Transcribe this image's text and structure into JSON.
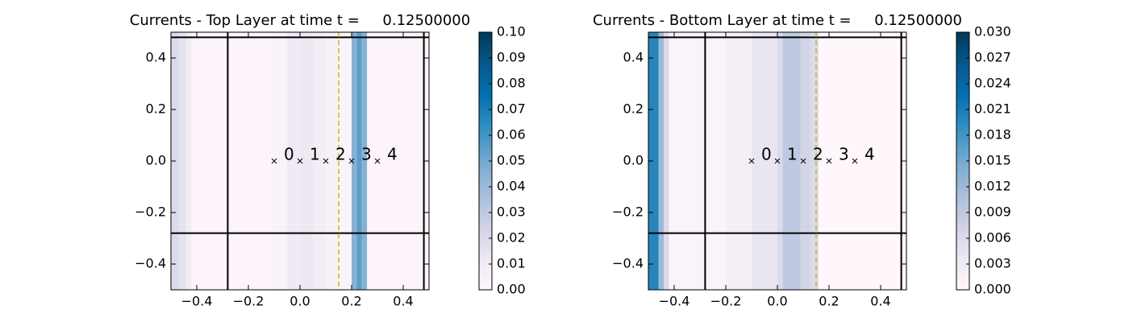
{
  "chart_data": [
    {
      "type": "stripe-heatmap",
      "title": "Currents - Top Layer at time t =     0.12500000",
      "xlim": [
        -0.5,
        0.5
      ],
      "ylim": [
        -0.5,
        0.5
      ],
      "xticks": [
        {
          "value": -0.4,
          "label": "−0.4"
        },
        {
          "value": -0.2,
          "label": "−0.2"
        },
        {
          "value": 0,
          "label": "0.0"
        },
        0.2,
        0.4
      ],
      "yticks": [
        {
          "value": -0.4,
          "label": "−0.4"
        },
        {
          "value": -0.2,
          "label": "−0.2"
        },
        {
          "value": 0,
          "label": "0.0"
        },
        0.2,
        0.4
      ],
      "bins": [
        -0.5,
        -0.47,
        -0.44,
        -0.42,
        -0.1,
        -0.05,
        0,
        0.05,
        0.1,
        0.15,
        0.2,
        0.22,
        0.24,
        0.26,
        0.5
      ],
      "values": [
        0.02,
        0.015,
        0.008,
        0.002,
        0.004,
        0.01,
        0.012,
        0.008,
        0.005,
        0.003,
        0.045,
        0.055,
        0.045,
        0.002
      ],
      "colormap": [
        "#fff7fb",
        "#ece7f2",
        "#d0d1e6",
        "#a6bddb",
        "#74a9cf",
        "#3690c0",
        "#0570b0",
        "#045a8d",
        "#023858"
      ],
      "clim": [
        0,
        0.1
      ],
      "cticks": [
        {
          "value": 0,
          "label": "0.00"
        },
        0.01,
        0.02,
        0.03,
        0.04,
        0.05,
        0.06,
        0.07,
        0.08,
        0.09,
        {
          "value": 0.1,
          "label": "0.10"
        }
      ],
      "hlines": [
        -0.28,
        0.48
      ],
      "vlines": [
        -0.28,
        0.48
      ],
      "dashed_line": {
        "x": 0.15,
        "color": "#bfbf00"
      },
      "points": {
        "x": [
          -0.1,
          0,
          0.1,
          0.2,
          0.3
        ],
        "y": [
          0,
          0,
          0,
          0,
          0
        ],
        "labels": [
          "0",
          "1",
          "2",
          "3",
          "4"
        ]
      }
    },
    {
      "type": "stripe-heatmap",
      "title": "Currents - Bottom Layer at time t =     0.12500000",
      "xlim": [
        -0.5,
        0.5
      ],
      "ylim": [
        -0.5,
        0.5
      ],
      "xticks": [
        {
          "value": -0.4,
          "label": "−0.4"
        },
        {
          "value": -0.2,
          "label": "−0.2"
        },
        {
          "value": 0,
          "label": "0.0"
        },
        0.2,
        0.4
      ],
      "yticks": [
        {
          "value": -0.4,
          "label": "−0.4"
        },
        {
          "value": -0.2,
          "label": "−0.2"
        },
        {
          "value": 0,
          "label": "0.0"
        },
        0.2,
        0.4
      ],
      "bins": [
        -0.5,
        -0.46,
        -0.44,
        -0.42,
        -0.2,
        -0.1,
        0,
        0.02,
        0.09,
        0.13,
        0.16,
        0.5
      ],
      "values": [
        0.02,
        0.012,
        0.006,
        0.001,
        0.002,
        0.004,
        0.006,
        0.009,
        0.007,
        0.006,
        0
      ],
      "colormap": [
        "#fff7fb",
        "#ece7f2",
        "#d0d1e6",
        "#a6bddb",
        "#74a9cf",
        "#3690c0",
        "#0570b0",
        "#045a8d",
        "#023858"
      ],
      "clim": [
        0,
        0.03
      ],
      "cticks": [
        {
          "value": 0,
          "label": "0.000"
        },
        0.003,
        0.006,
        0.009,
        0.012,
        0.015,
        0.018,
        0.021,
        0.024,
        0.027,
        {
          "value": 0.03,
          "label": "0.030"
        }
      ],
      "hlines": [
        -0.28,
        0.48
      ],
      "vlines": [
        -0.28,
        0.48
      ],
      "dashed_line": {
        "x": 0.15,
        "color": "#bfbf00"
      },
      "points": {
        "x": [
          -0.1,
          0,
          0.1,
          0.2,
          0.3
        ],
        "y": [
          0,
          0,
          0,
          0,
          0
        ],
        "labels": [
          "0",
          "1",
          "2",
          "3",
          "4"
        ]
      }
    }
  ]
}
